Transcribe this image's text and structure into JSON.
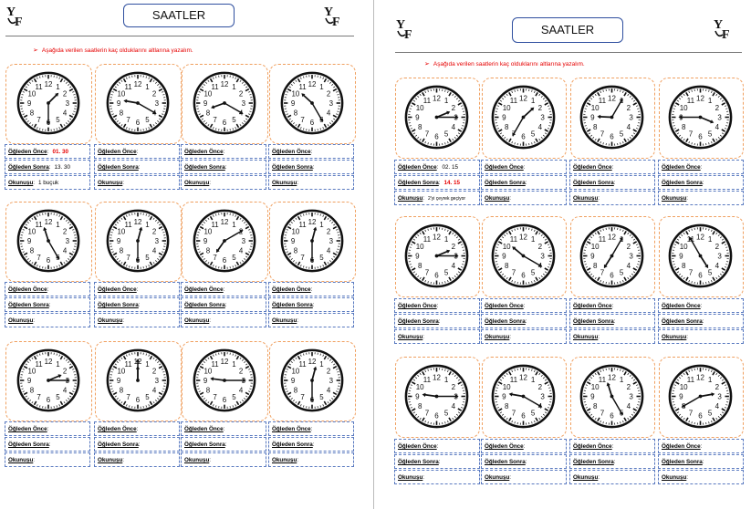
{
  "pages": [
    {
      "title": "SAATLER",
      "logo_text": "YF",
      "instruction": "Aşağıda verilen saatlerin kaç olduklarını altlarına yazalım.",
      "labels": {
        "before_noon": "Öğleden Önce",
        "after_noon": "Öğleden Sonra",
        "reading": "Okunuşu"
      },
      "clocks": [
        {
          "hour": 1,
          "minute": 30,
          "answer_before": "01. 30",
          "answer_after": "13. 30",
          "answer_reading": "1 buçuk"
        },
        {
          "hour": 9,
          "minute": 20
        },
        {
          "hour": 8,
          "minute": 20
        },
        {
          "hour": 10,
          "minute": 25
        },
        {
          "hour": 11,
          "minute": 25
        },
        {
          "hour": 12,
          "minute": 30
        },
        {
          "hour": 7,
          "minute": 10
        },
        {
          "hour": 12,
          "minute": 30
        },
        {
          "hour": 2,
          "minute": 15
        },
        {
          "hour": 12,
          "minute": 0
        },
        {
          "hour": 9,
          "minute": 15
        },
        {
          "hour": 12,
          "minute": 30
        }
      ]
    },
    {
      "title": "SAATLER",
      "logo_text": "YF",
      "instruction": "Aşağıda verilen saatlerin kaç olduklarını altlarına yazalım.",
      "labels": {
        "before_noon": "Öğleden Önce",
        "after_noon": "Öğleden Sonra",
        "reading": "Okunuşu"
      },
      "clocks": [
        {
          "hour": 2,
          "minute": 15,
          "answer_before": "02. 15",
          "answer_after": "14. 15",
          "answer_reading": "2'yi çeyrek geçiyor"
        },
        {
          "hour": 1,
          "minute": 35
        },
        {
          "hour": 9,
          "minute": 5
        },
        {
          "hour": 3,
          "minute": 45
        },
        {
          "hour": 2,
          "minute": 15
        },
        {
          "hour": 10,
          "minute": 20
        },
        {
          "hour": 7,
          "minute": 5
        },
        {
          "hour": 4,
          "minute": 55
        },
        {
          "hour": 9,
          "minute": 15
        },
        {
          "hour": 9,
          "minute": 20
        },
        {
          "hour": 11,
          "minute": 25
        },
        {
          "hour": 2,
          "minute": 40
        }
      ]
    }
  ]
}
